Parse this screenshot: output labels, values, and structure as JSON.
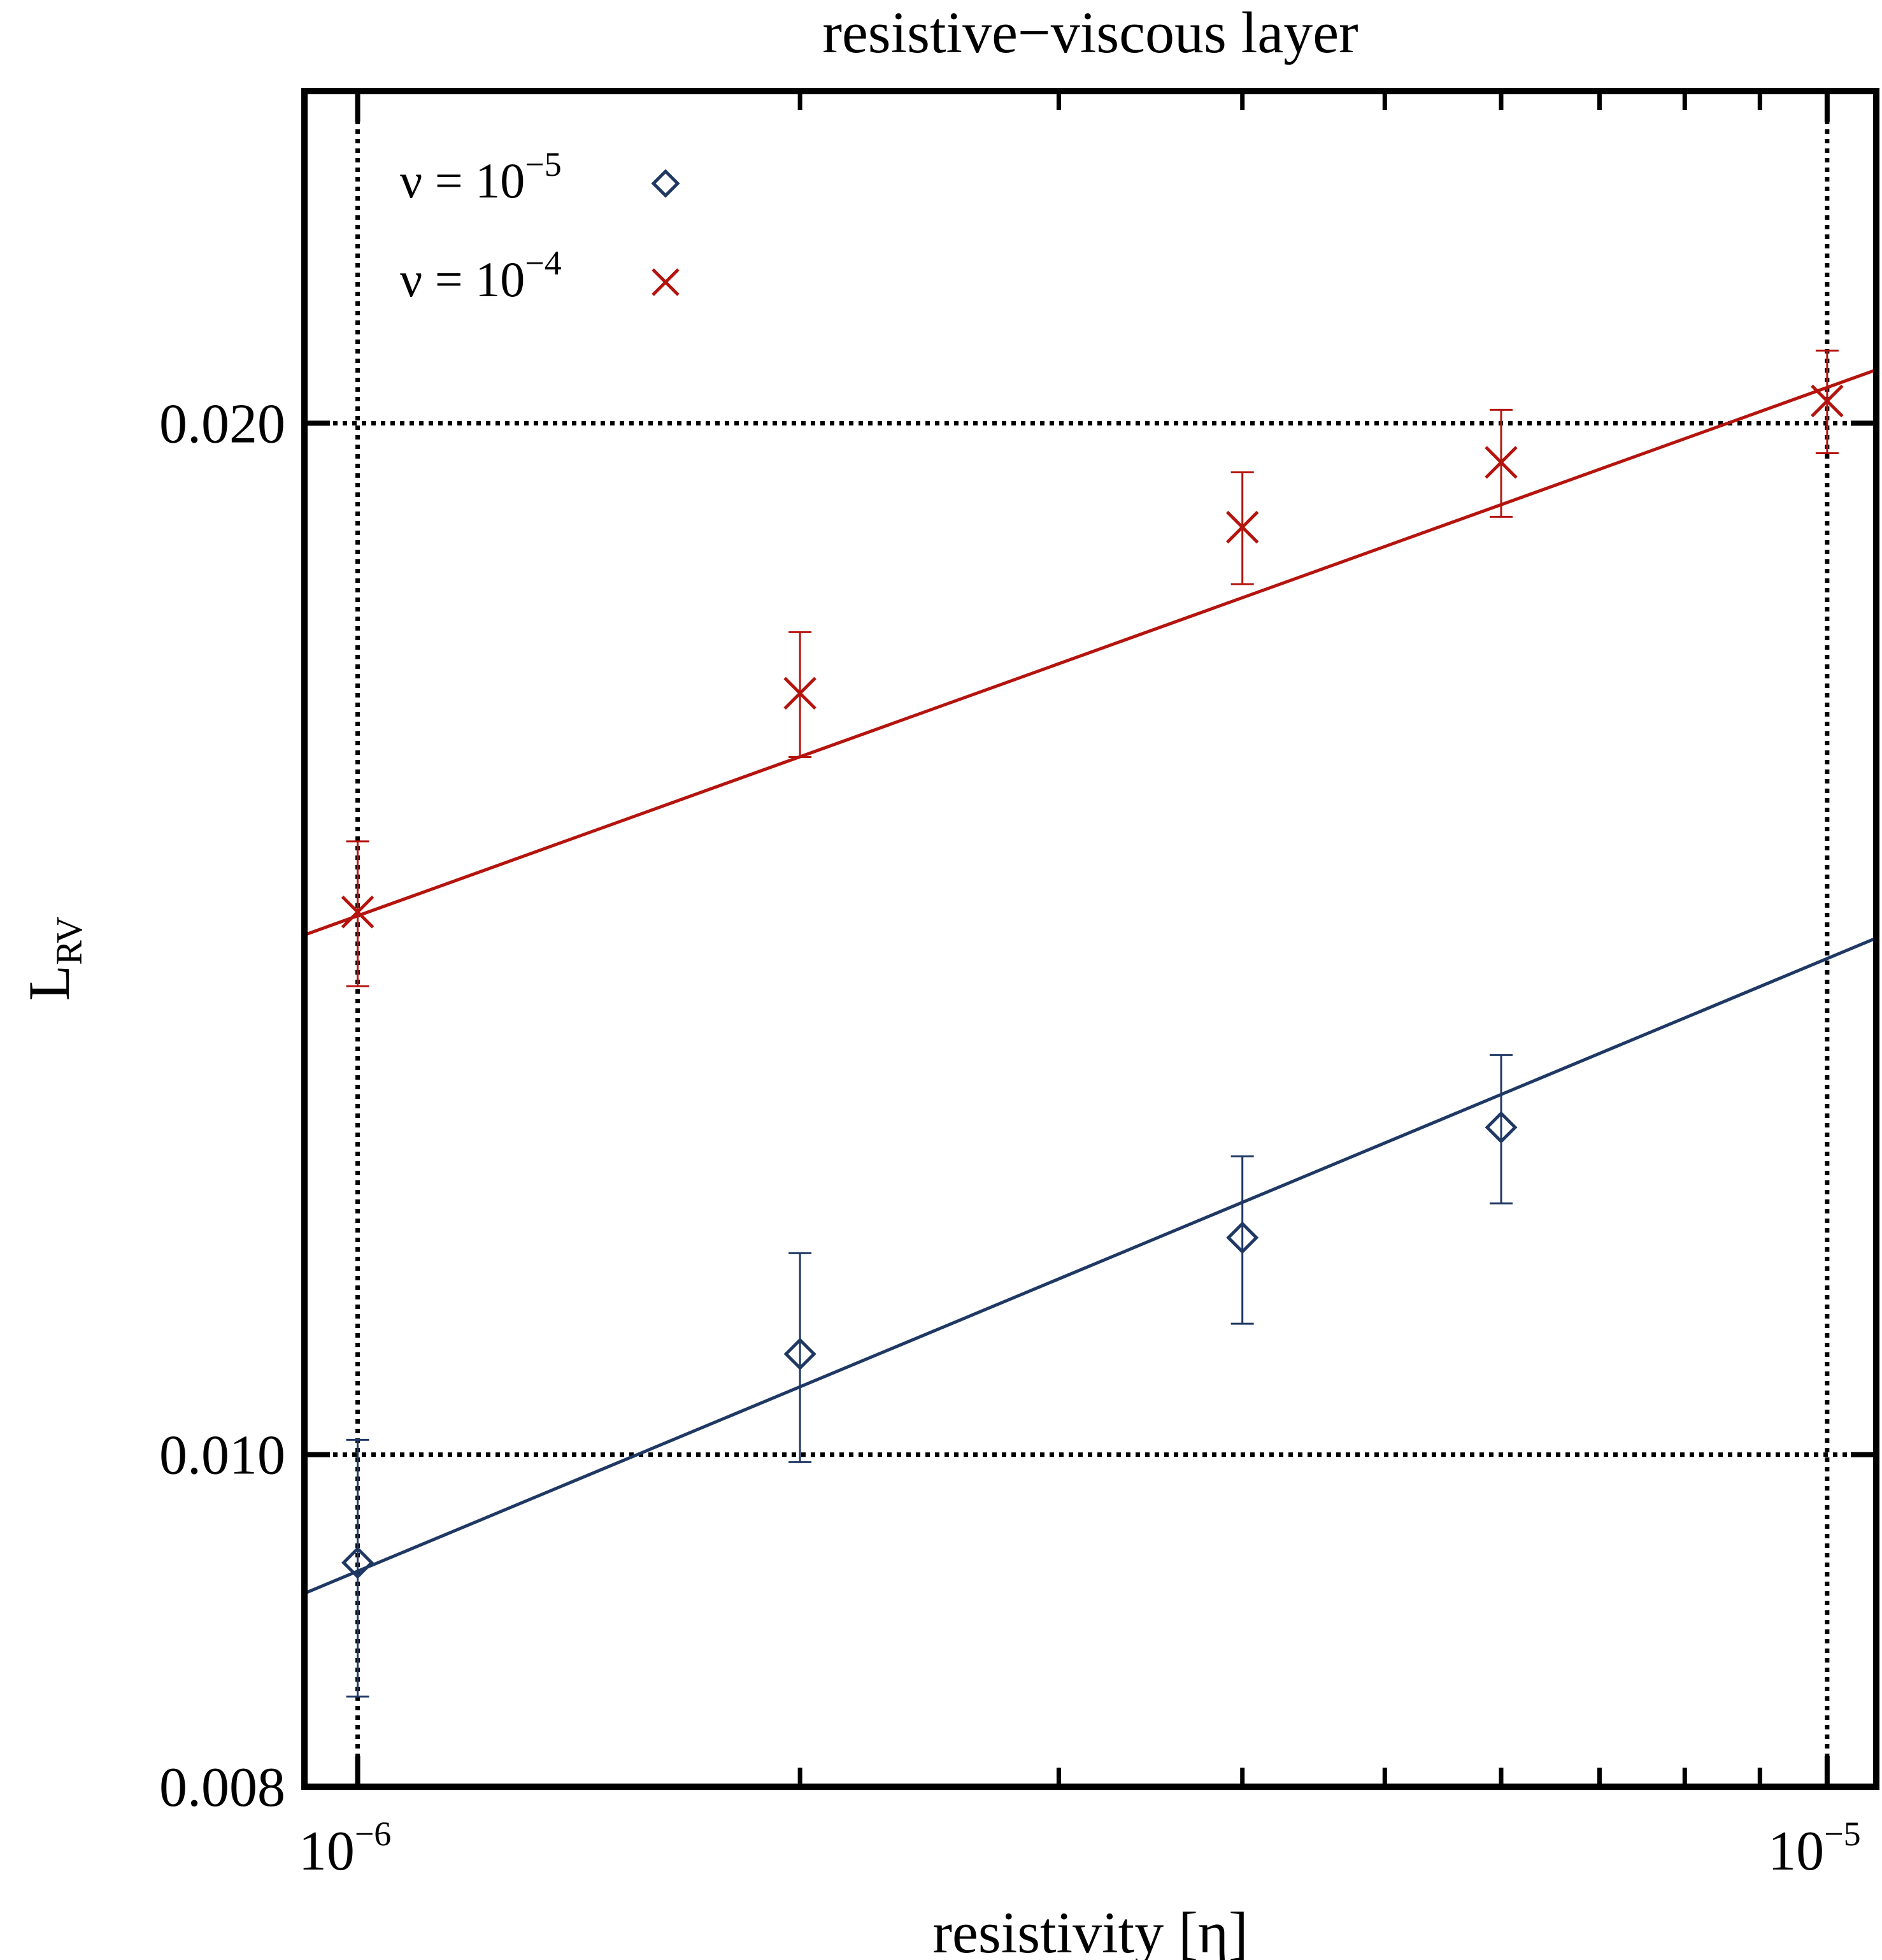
{
  "chart_data": {
    "type": "scatter",
    "title": "resistive−viscous layer",
    "xlabel": "resistivity [η]",
    "ylabel": {
      "base": "L",
      "subscript": "RV"
    },
    "x_scale": "log",
    "y_scale": "log",
    "xlim": [
      9.2e-07,
      1.08e-05
    ],
    "ylim": [
      0.008,
      0.025
    ],
    "x_ticks": [
      {
        "value": 1e-06,
        "base": "10",
        "exp": "−6"
      },
      {
        "value": 1e-05,
        "base": "10",
        "exp": "−5"
      }
    ],
    "y_ticks": [
      {
        "value": 0.008,
        "label": "0.008"
      },
      {
        "value": 0.01,
        "label": "0.010"
      },
      {
        "value": 0.02,
        "label": "0.020"
      }
    ],
    "reference_lines": {
      "x": [
        1e-06,
        1e-05
      ],
      "y": [
        0.01,
        0.02
      ],
      "style": "dotted"
    },
    "legend_position": "top-left",
    "series": [
      {
        "name": "ν = 10−5",
        "legend_base": "ν = 10",
        "legend_exp": "−5",
        "marker": "diamond",
        "color": "#1f3864",
        "points": [
          {
            "x": 1e-06,
            "y": 0.0093,
            "err": 0.0008
          },
          {
            "x": 2e-06,
            "y": 0.0107,
            "err": 0.00075
          },
          {
            "x": 4e-06,
            "y": 0.01157,
            "err": 0.00065
          },
          {
            "x": 6e-06,
            "y": 0.01246,
            "err": 0.00062
          }
        ],
        "fit": {
          "x": [
            9.2e-07,
            1.08e-05
          ],
          "y": [
            0.00911,
            0.01415
          ]
        }
      },
      {
        "name": "ν = 10−4",
        "legend_base": "ν = 10",
        "legend_exp": "−4",
        "marker": "x",
        "color": "#b5140e",
        "points": [
          {
            "x": 1e-06,
            "y": 0.0144,
            "err": 0.0007
          },
          {
            "x": 2e-06,
            "y": 0.01668,
            "err": 0.0007
          },
          {
            "x": 4e-06,
            "y": 0.01865,
            "err": 0.0007
          },
          {
            "x": 6e-06,
            "y": 0.01948,
            "err": 0.0007
          },
          {
            "x": 1e-05,
            "y": 0.0203,
            "err": 0.0007
          }
        ],
        "fit": {
          "x": [
            9.2e-07,
            1.08e-05
          ],
          "y": [
            0.01418,
            0.02073
          ]
        }
      }
    ]
  }
}
